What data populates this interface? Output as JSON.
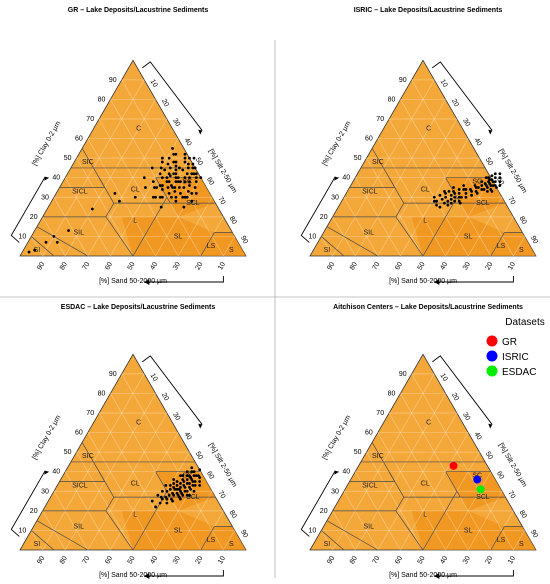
{
  "chart_data": [
    {
      "type": "scatter",
      "title": "GR – Lake Deposits/Lacustrine Sediments",
      "axis_labels": {
        "clay": "[%] Clay 0-2 µm",
        "silt": "[%] Silt 2-50 µm",
        "sand": "[%] Sand 50-2000 µm"
      },
      "ticks": {
        "clay": [
          "10",
          "20",
          "30",
          "40",
          "50",
          "60",
          "70",
          "80",
          "90"
        ],
        "silt": [
          "10",
          "20",
          "30",
          "40",
          "50",
          "60",
          "70",
          "80",
          "90"
        ],
        "sand": [
          "90",
          "80",
          "70",
          "60",
          "50",
          "40",
          "30",
          "20",
          "10"
        ]
      },
      "classes": [
        "C",
        "SIC",
        "SC",
        "CL",
        "SICL",
        "SCL",
        "L",
        "SL",
        "SIL",
        "S",
        "LS",
        "SI"
      ],
      "points": [
        [
          52,
          30
        ],
        [
          40,
          45
        ],
        [
          45,
          30
        ],
        [
          35,
          40
        ],
        [
          60,
          25
        ],
        [
          50,
          38
        ],
        [
          42,
          52
        ],
        [
          55,
          28
        ],
        [
          38,
          35
        ],
        [
          48,
          42
        ],
        [
          58,
          30
        ],
        [
          44,
          48
        ],
        [
          50,
          25
        ],
        [
          36,
          45
        ],
        [
          53,
          35
        ],
        [
          46,
          38
        ],
        [
          40,
          55
        ],
        [
          55,
          40
        ],
        [
          62,
          28
        ],
        [
          47,
          44
        ],
        [
          41,
          50
        ],
        [
          50,
          32
        ],
        [
          57,
          36
        ],
        [
          45,
          42
        ],
        [
          52,
          45
        ],
        [
          48,
          35
        ],
        [
          60,
          32
        ],
        [
          43,
          40
        ],
        [
          54,
          30
        ],
        [
          49,
          48
        ],
        [
          38,
          50
        ],
        [
          56,
          42
        ],
        [
          51,
          38
        ],
        [
          44,
          36
        ],
        [
          59,
          38
        ],
        [
          47,
          30
        ],
        [
          53,
          42
        ],
        [
          42,
          44
        ],
        [
          50,
          50
        ],
        [
          46,
          34
        ],
        [
          55,
          35
        ],
        [
          58,
          40
        ],
        [
          48,
          45
        ],
        [
          45,
          48
        ],
        [
          52,
          38
        ],
        [
          60,
          35
        ],
        [
          43,
          35
        ],
        [
          49,
          40
        ],
        [
          54,
          45
        ],
        [
          47,
          52
        ],
        [
          50,
          44
        ],
        [
          57,
          30
        ],
        [
          44,
          30
        ],
        [
          52,
          33
        ],
        [
          40,
          38
        ],
        [
          56,
          38
        ],
        [
          51,
          47
        ],
        [
          46,
          41
        ],
        [
          58,
          33
        ],
        [
          45,
          36
        ],
        [
          53,
          40
        ],
        [
          49,
          36
        ],
        [
          42,
          47
        ],
        [
          55,
          32
        ],
        [
          47,
          38
        ],
        [
          50,
          40
        ],
        [
          62,
          32
        ],
        [
          48,
          30
        ],
        [
          54,
          38
        ],
        [
          44,
          45
        ],
        [
          41,
          42
        ],
        [
          57,
          42
        ],
        [
          52,
          50
        ],
        [
          46,
          46
        ],
        [
          59,
          30
        ],
        [
          43,
          52
        ],
        [
          51,
          35
        ],
        [
          48,
          50
        ],
        [
          55,
          45
        ],
        [
          45,
          40
        ],
        [
          53,
          47
        ],
        [
          60,
          40
        ],
        [
          39,
          48
        ],
        [
          50,
          35
        ],
        [
          47,
          42
        ],
        [
          55,
          42
        ],
        [
          36,
          30
        ],
        [
          42,
          35
        ],
        [
          30,
          28
        ],
        [
          26,
          32
        ],
        [
          15,
          13
        ],
        [
          20,
          24
        ],
        [
          13,
          7
        ],
        [
          10,
          10
        ],
        [
          8,
          7
        ],
        [
          5,
          3
        ],
        [
          3,
          2
        ]
      ],
      "point_color": "#000000"
    },
    {
      "type": "scatter",
      "title": "ISRIC – Lake Deposits/Lacustrine Sediments",
      "axis_labels": {
        "clay": "[%] Clay 0-2 µm",
        "silt": "[%] Silt 2-50 µm",
        "sand": "[%] Sand 50-2000 µm"
      },
      "ticks": {
        "clay": [
          "10",
          "20",
          "30",
          "40",
          "50",
          "60",
          "70",
          "80",
          "90"
        ],
        "silt": [
          "10",
          "20",
          "30",
          "40",
          "50",
          "60",
          "70",
          "80",
          "90"
        ],
        "sand": [
          "90",
          "80",
          "70",
          "60",
          "50",
          "40",
          "30",
          "20",
          "10"
        ]
      },
      "classes": [
        "C",
        "SIC",
        "SC",
        "CL",
        "SICL",
        "SCL",
        "L",
        "SL",
        "SIL",
        "S",
        "LS",
        "SI"
      ],
      "points": [
        [
          60,
          38
        ],
        [
          62,
          36
        ],
        [
          58,
          40
        ],
        [
          61,
          35
        ],
        [
          63,
          38
        ],
        [
          59,
          37
        ],
        [
          64,
          36
        ],
        [
          60,
          41
        ],
        [
          62,
          40
        ],
        [
          57,
          38
        ],
        [
          63,
          34
        ],
        [
          61,
          39
        ],
        [
          65,
          38
        ],
        [
          59,
          34
        ],
        [
          62,
          33
        ],
        [
          60,
          36
        ],
        [
          64,
          40
        ],
        [
          58,
          36
        ],
        [
          63,
          42
        ],
        [
          61,
          37
        ],
        [
          66,
          36
        ],
        [
          60,
          34
        ],
        [
          57,
          35
        ],
        [
          62,
          38
        ],
        [
          64,
          33
        ],
        [
          59,
          40
        ],
        [
          61,
          42
        ],
        [
          65,
          35
        ],
        [
          63,
          36
        ],
        [
          60,
          39
        ],
        [
          55,
          33
        ],
        [
          52,
          30
        ],
        [
          48,
          32
        ],
        [
          50,
          28
        ],
        [
          45,
          30
        ],
        [
          43,
          33
        ],
        [
          47,
          28
        ],
        [
          53,
          32
        ],
        [
          49,
          30
        ],
        [
          46,
          27
        ],
        [
          51,
          34
        ],
        [
          44,
          29
        ],
        [
          48,
          26
        ],
        [
          42,
          31
        ],
        [
          54,
          30
        ],
        [
          50,
          32
        ],
        [
          47,
          31
        ],
        [
          52,
          28
        ],
        [
          41,
          28
        ],
        [
          45,
          33
        ],
        [
          49,
          34
        ],
        [
          53,
          27
        ],
        [
          56,
          31
        ],
        [
          46,
          35
        ],
        [
          43,
          26
        ],
        [
          51,
          30
        ],
        [
          48,
          29
        ],
        [
          55,
          36
        ],
        [
          57,
          33
        ],
        [
          44,
          32
        ],
        [
          50,
          36
        ],
        [
          52,
          34
        ],
        [
          40,
          30
        ],
        [
          47,
          33
        ],
        [
          54,
          34
        ],
        [
          58,
          32
        ],
        [
          45,
          25
        ],
        [
          49,
          27
        ],
        [
          42,
          28
        ],
        [
          56,
          35
        ]
      ],
      "point_color": "#000000"
    },
    {
      "type": "scatter",
      "title": "ESDAC – Lake Deposits/Lacustrine Sediments",
      "axis_labels": {
        "clay": "[%] Clay 0-2 µm",
        "silt": "[%] Silt 2-50 µm",
        "sand": "[%] Sand 50-2000 µm"
      },
      "ticks": {
        "clay": [
          "10",
          "20",
          "30",
          "40",
          "50",
          "60",
          "70",
          "80",
          "90"
        ],
        "silt": [
          "10",
          "20",
          "30",
          "40",
          "50",
          "60",
          "70",
          "80",
          "90"
        ],
        "sand": [
          "90",
          "80",
          "70",
          "60",
          "50",
          "40",
          "30",
          "20",
          "10"
        ]
      },
      "classes": [
        "C",
        "SIC",
        "SC",
        "CL",
        "SICL",
        "SCL",
        "L",
        "SL",
        "SIL",
        "S",
        "LS",
        "SI"
      ],
      "points": [
        [
          55,
          32
        ],
        [
          58,
          30
        ],
        [
          52,
          35
        ],
        [
          60,
          28
        ],
        [
          56,
          36
        ],
        [
          54,
          28
        ],
        [
          50,
          30
        ],
        [
          57,
          34
        ],
        [
          59,
          38
        ],
        [
          53,
          31
        ],
        [
          61,
          33
        ],
        [
          55,
          38
        ],
        [
          51,
          27
        ],
        [
          58,
          26
        ],
        [
          62,
          30
        ],
        [
          54,
          34
        ],
        [
          50,
          36
        ],
        [
          57,
          29
        ],
        [
          60,
          35
        ],
        [
          52,
          28
        ],
        [
          56,
          40
        ],
        [
          59,
          32
        ],
        [
          53,
          38
        ],
        [
          48,
          30
        ],
        [
          55,
          25
        ],
        [
          61,
          28
        ],
        [
          58,
          36
        ],
        [
          54,
          40
        ],
        [
          50,
          33
        ],
        [
          57,
          32
        ],
        [
          63,
          33
        ],
        [
          52,
          32
        ],
        [
          56,
          30
        ],
        [
          59,
          41
        ],
        [
          55,
          35
        ],
        [
          49,
          27
        ],
        [
          60,
          31
        ],
        [
          53,
          24
        ],
        [
          58,
          38
        ],
        [
          51,
          34
        ],
        [
          57,
          37
        ],
        [
          54,
          31
        ],
        [
          62,
          35
        ],
        [
          56,
          28
        ],
        [
          50,
          26
        ],
        [
          59,
          30
        ],
        [
          55,
          42
        ],
        [
          52,
          38
        ],
        [
          60,
          38
        ],
        [
          48,
          33
        ],
        [
          56,
          33
        ],
        [
          58,
          28
        ],
        [
          54,
          36
        ],
        [
          61,
          37
        ],
        [
          53,
          29
        ],
        [
          57,
          40
        ],
        [
          50,
          24
        ],
        [
          55,
          29
        ],
        [
          59,
          35
        ],
        [
          52,
          26
        ],
        [
          47,
          28
        ],
        [
          58,
          34
        ],
        [
          55,
          31
        ],
        [
          51,
          31
        ],
        [
          60,
          33
        ],
        [
          54,
          26
        ],
        [
          56,
          38
        ],
        [
          49,
          22
        ],
        [
          57,
          27
        ],
        [
          53,
          33
        ],
        [
          46,
          25
        ]
      ],
      "point_color": "#000000"
    },
    {
      "type": "scatter",
      "title": "Aitchison Centers – Lake Deposits/Lacustrine Sediments",
      "axis_labels": {
        "clay": "[%] Clay 0-2 µm",
        "silt": "[%] Silt 2-50 µm",
        "sand": "[%] Sand 50-2000 µm"
      },
      "ticks": {
        "clay": [
          "10",
          "20",
          "30",
          "40",
          "50",
          "60",
          "70",
          "80",
          "90"
        ],
        "silt": [
          "10",
          "20",
          "30",
          "40",
          "50",
          "60",
          "70",
          "80",
          "90"
        ],
        "sand": [
          "90",
          "80",
          "70",
          "60",
          "50",
          "40",
          "30",
          "20",
          "10"
        ]
      },
      "classes": [
        "C",
        "SIC",
        "SC",
        "CL",
        "SICL",
        "SCL",
        "L",
        "SL",
        "SIL",
        "S",
        "LS",
        "SI"
      ],
      "legend_title": "Datasets",
      "series": [
        {
          "name": "GR",
          "color": "#ff0000",
          "silt": 42,
          "clay": 43
        },
        {
          "name": "ISRIC",
          "color": "#0000ff",
          "silt": 56,
          "clay": 36
        },
        {
          "name": "ESDAC",
          "color": "#00ee00",
          "silt": 60,
          "clay": 31
        }
      ]
    }
  ]
}
